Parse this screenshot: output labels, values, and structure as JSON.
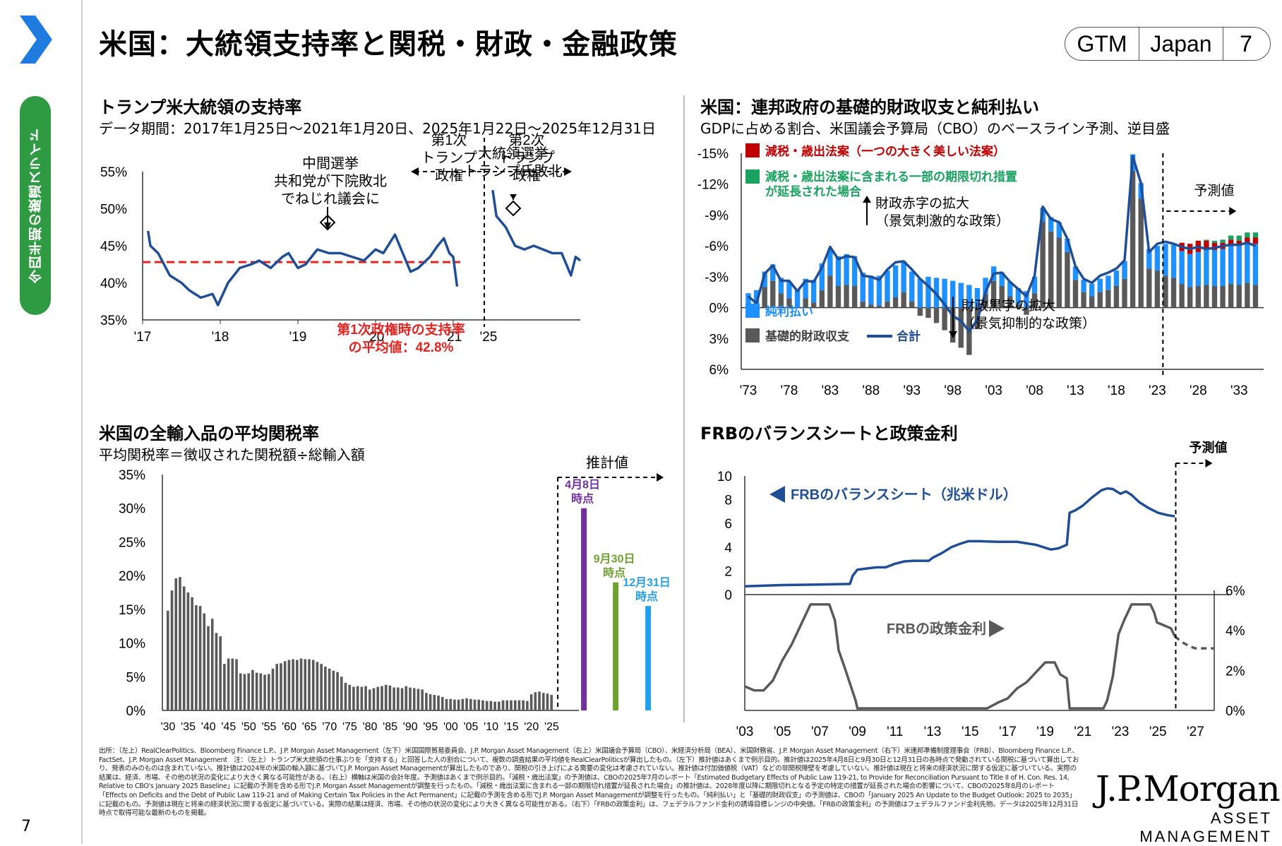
{
  "header": {
    "title": "米国：大統領支持率と関税・財政・金融政策",
    "badge": [
      "GTM",
      "Japan",
      "7"
    ]
  },
  "rail": {
    "label": "今四半期の厳選スライド",
    "page_number": "7"
  },
  "colors": {
    "navy": "#1f4e96",
    "red": "#e52420",
    "light_blue": "#1e90ff",
    "dark_red": "#c00000",
    "green": "#1aa260",
    "gray": "#595959",
    "purple": "#7030a0",
    "olive": "#70a030",
    "sky": "#23a0ea",
    "rail_green": "#2e9b42",
    "chevron_blue": "#1e7be0"
  },
  "chart_data": [
    {
      "id": "approval",
      "type": "line",
      "title": "トランプ米大統領の支持率",
      "subtitle": "データ期間：2017年1月25日～2021年1月20日、2025年1月22日～2025年12月31日",
      "ylim": [
        35,
        55
      ],
      "yticks": [
        "55%",
        "50%",
        "45%",
        "40%",
        "35%"
      ],
      "xticks": [
        "'17",
        "'18",
        "'19",
        "'20",
        "'21",
        "'25"
      ],
      "series": [
        {
          "period": "2017-2021",
          "x": [
            2017.07,
            2017.1,
            2017.2,
            2017.35,
            2017.5,
            2017.6,
            2017.75,
            2017.9,
            2017.97,
            2018.1,
            2018.25,
            2018.4,
            2018.5,
            2018.65,
            2018.8,
            2018.88,
            2019.0,
            2019.1,
            2019.25,
            2019.4,
            2019.55,
            2019.7,
            2019.85,
            2020.0,
            2020.1,
            2020.25,
            2020.35,
            2020.45,
            2020.55,
            2020.7,
            2020.8,
            2020.88,
            2020.95,
            2021.0,
            2021.05
          ],
          "y": [
            47.0,
            45.0,
            44.0,
            41.0,
            40.0,
            39.0,
            38.0,
            38.5,
            37.0,
            40.0,
            42.0,
            42.5,
            43.0,
            42.0,
            43.5,
            44.0,
            42.0,
            42.5,
            44.5,
            44.0,
            44.0,
            43.5,
            43.0,
            44.5,
            44.0,
            46.5,
            44.0,
            41.5,
            42.0,
            43.5,
            45.0,
            46.0,
            44.0,
            43.5,
            39.5
          ]
        },
        {
          "period": "2025",
          "x": [
            2025.06,
            2025.1,
            2025.2,
            2025.3,
            2025.4,
            2025.5,
            2025.6,
            2025.7,
            2025.8,
            2025.9,
            2025.95,
            2026.0
          ],
          "y": [
            52.5,
            49.0,
            47.5,
            45.0,
            44.5,
            45.0,
            44.5,
            44.0,
            44.0,
            41.0,
            43.5,
            43.0
          ]
        }
      ],
      "average_line": {
        "value": 42.8,
        "label": "第1次政権時の支持率の平均値：42.8%"
      },
      "annotations": [
        {
          "text": "中間選挙\n共和党が下院敗北\nでねじれ議会に",
          "x": 2018.85
        },
        {
          "text": "大統領選挙\nトランプ氏敗北",
          "x": 2020.85
        },
        {
          "text": "第1次\nトランプ\n政権"
        },
        {
          "text": "第2次\nトランプ\n政権"
        }
      ]
    },
    {
      "id": "fiscal",
      "type": "bar",
      "title": "米国：連邦政府の基礎的財政収支と純利払い",
      "subtitle": "GDPに占める割合、米国議会予算局（CBO）のベースライン予測、逆目盛",
      "ylim": [
        6,
        -15
      ],
      "yticks": [
        "-15%",
        "-12%",
        "-9%",
        "-6%",
        "-3%",
        "0%",
        "3%",
        "6%"
      ],
      "xticks": [
        "'73",
        "'78",
        "'83",
        "'88",
        "'93",
        "'98",
        "'03",
        "'08",
        "'13",
        "'18",
        "'23",
        "'28",
        "'33"
      ],
      "legend": [
        "減税・歳出法案（一つの大きく美しい法案）",
        "減税・歳出法案に含まれる一部の期限切れ措置が延長された場合",
        "純利払い",
        "基礎的財政収支",
        "合計"
      ],
      "annotations": [
        "財政赤字の拡大\n（景気刺激的な政策）",
        "財政黒字の拡大\n（景気抑制的な政策）",
        "予測値"
      ],
      "x": [
        1973,
        1974,
        1975,
        1976,
        1977,
        1978,
        1979,
        1980,
        1981,
        1982,
        1983,
        1984,
        1985,
        1986,
        1987,
        1988,
        1989,
        1990,
        1991,
        1992,
        1993,
        1994,
        1995,
        1996,
        1997,
        1998,
        1999,
        2000,
        2001,
        2002,
        2003,
        2004,
        2005,
        2006,
        2007,
        2008,
        2009,
        2010,
        2011,
        2012,
        2013,
        2014,
        2015,
        2016,
        2017,
        2018,
        2019,
        2020,
        2021,
        2022,
        2023,
        2024,
        2025,
        2026,
        2027,
        2028,
        2029,
        2030,
        2031,
        2032,
        2033,
        2034,
        2035
      ],
      "primary": [
        0.6,
        -0.2,
        -2.0,
        -2.6,
        -1.4,
        -0.9,
        0.0,
        -0.9,
        -0.5,
        -1.7,
        -3.1,
        -2.1,
        -2.2,
        -2.1,
        -0.6,
        -0.3,
        -0.2,
        -0.6,
        -1.0,
        -1.5,
        -0.6,
        0.8,
        1.0,
        1.5,
        2.2,
        3.4,
        3.9,
        4.6,
        2.1,
        -1.3,
        -2.6,
        -2.1,
        -1.1,
        -0.3,
        0.7,
        -1.4,
        -8.4,
        -7.4,
        -6.8,
        -5.4,
        -2.7,
        -1.5,
        -1.1,
        -1.5,
        -1.7,
        -2.1,
        -2.8,
        -13.3,
        -10.6,
        -3.8,
        -3.6,
        -3.1,
        -2.9,
        -2.3,
        -2.0,
        -2.1,
        -2.2,
        -2.1,
        -2.1,
        -2.3,
        -2.2,
        -2.4,
        -2.2
      ],
      "net_interest": [
        -1.4,
        -1.5,
        -1.5,
        -1.6,
        -1.5,
        -1.6,
        -1.7,
        -1.9,
        -2.2,
        -2.6,
        -2.6,
        -2.9,
        -3.0,
        -2.9,
        -2.8,
        -2.8,
        -2.9,
        -3.0,
        -3.1,
        -3.0,
        -2.9,
        -2.8,
        -3.0,
        -2.9,
        -2.8,
        -2.6,
        -2.4,
        -2.2,
        -1.9,
        -1.6,
        -1.4,
        -1.3,
        -1.4,
        -1.6,
        -1.6,
        -1.6,
        -1.3,
        -1.4,
        -1.5,
        -1.3,
        -1.3,
        -1.2,
        -1.2,
        -1.3,
        -1.4,
        -1.5,
        -1.7,
        -1.6,
        -1.5,
        -1.9,
        -2.4,
        -3.1,
        -3.2,
        -3.2,
        -3.2,
        -3.3,
        -3.4,
        -3.5,
        -3.6,
        -3.7,
        -3.8,
        -3.9,
        -4.0
      ],
      "obbba": [
        0,
        0,
        0,
        0,
        0,
        0,
        0,
        0,
        0,
        0,
        0,
        0,
        0,
        0,
        0,
        0,
        0,
        0,
        0,
        0,
        0,
        0,
        0,
        0,
        0,
        0,
        0,
        0,
        0,
        0,
        0,
        0,
        0,
        0,
        0,
        0,
        0,
        0,
        0,
        0,
        0,
        0,
        0,
        0,
        0,
        0,
        0,
        0,
        0,
        0,
        0,
        0,
        0,
        -0.8,
        -1.0,
        -1.1,
        -0.9,
        -0.7,
        -0.6,
        -0.6,
        -0.5,
        -0.5,
        -0.6
      ],
      "extension": [
        0,
        0,
        0,
        0,
        0,
        0,
        0,
        0,
        0,
        0,
        0,
        0,
        0,
        0,
        0,
        0,
        0,
        0,
        0,
        0,
        0,
        0,
        0,
        0,
        0,
        0,
        0,
        0,
        0,
        0,
        0,
        0,
        0,
        0,
        0,
        0,
        0,
        0,
        0,
        0,
        0,
        0,
        0,
        0,
        0,
        0,
        0,
        0,
        0,
        0,
        0,
        0,
        0,
        0,
        0,
        0,
        -0.1,
        -0.2,
        -0.3,
        -0.4,
        -0.5,
        -0.5,
        -0.5
      ],
      "total": [
        -1.1,
        -0.4,
        -3.3,
        -4.1,
        -2.6,
        -2.6,
        -1.6,
        -2.6,
        -2.5,
        -3.9,
        -5.9,
        -4.7,
        -5.0,
        -4.9,
        -3.1,
        -3.0,
        -2.7,
        -3.7,
        -4.4,
        -4.5,
        -3.7,
        -2.8,
        -2.1,
        -1.3,
        -0.3,
        0.8,
        1.3,
        2.3,
        1.2,
        -1.5,
        -3.3,
        -3.4,
        -2.5,
        -1.8,
        -1.1,
        -3.1,
        -9.8,
        -8.6,
        -8.3,
        -6.7,
        -4.0,
        -2.8,
        -2.4,
        -3.1,
        -3.4,
        -3.8,
        -4.6,
        -14.7,
        -12.1,
        -5.4,
        -6.2,
        -6.4,
        -6.2,
        -5.9,
        -5.7,
        -5.9,
        -5.7,
        -5.8,
        -6.0,
        -6.1,
        -6.1,
        -6.3,
        -6.0
      ]
    },
    {
      "id": "tariff",
      "type": "bar",
      "title": "米国の全輸入品の平均関税率",
      "subtitle": "平均関税率＝徴収された関税額÷総輸入額",
      "ylim": [
        0,
        35
      ],
      "yticks": [
        "35%",
        "30%",
        "25%",
        "20%",
        "15%",
        "10%",
        "5%",
        "0%"
      ],
      "xticks": [
        "'30",
        "'35",
        "'40",
        "'45",
        "'50",
        "'55",
        "'60",
        "'65",
        "'70",
        "'75",
        "'80",
        "'85",
        "'90",
        "'95",
        "'00",
        "'05",
        "'10",
        "'15",
        "'20",
        "'25"
      ],
      "years_start": 1930,
      "values": [
        14.8,
        17.8,
        19.6,
        19.8,
        18.4,
        17.5,
        16.8,
        15.6,
        15.5,
        14.4,
        12.5,
        13.6,
        11.5,
        11.0,
        6.9,
        7.7,
        7.7,
        7.6,
        5.5,
        5.4,
        5.5,
        6.0,
        5.6,
        5.5,
        5.3,
        5.4,
        6.2,
        6.9,
        7.0,
        7.3,
        7.5,
        7.6,
        7.5,
        7.7,
        7.6,
        7.6,
        7.5,
        7.2,
        6.9,
        6.5,
        6.2,
        5.9,
        5.7,
        5.0,
        4.1,
        3.8,
        3.5,
        3.6,
        3.5,
        3.6,
        3.1,
        3.3,
        3.5,
        3.6,
        3.8,
        3.7,
        3.4,
        3.4,
        3.3,
        3.6,
        3.4,
        3.3,
        3.2,
        3.1,
        2.6,
        2.4,
        2.3,
        2.2,
        2.0,
        1.7,
        1.7,
        1.6,
        1.6,
        1.7,
        1.8,
        1.7,
        1.6,
        1.6,
        1.5,
        1.4,
        1.4,
        1.3,
        1.3,
        1.5,
        1.5,
        1.5,
        1.5,
        1.5,
        1.5,
        1.4,
        2.4,
        2.7,
        2.8,
        2.6,
        2.5,
        2.3
      ],
      "projection_label": "推計値",
      "estimates": [
        {
          "label": "4月8日\n時点",
          "value": 30.0,
          "color": "#7030a0"
        },
        {
          "label": "9月30日\n時点",
          "value": 19.0,
          "color": "#70a030"
        },
        {
          "label": "12月31日\n時点",
          "value": 15.5,
          "color": "#23a0ea"
        }
      ]
    },
    {
      "id": "fed",
      "type": "line",
      "title": "FRBのバランスシートと政策金利",
      "projection_label": "予測値",
      "xticks": [
        "'03",
        "'05",
        "'07",
        "'09",
        "'11",
        "'13",
        "'15",
        "'17",
        "'19",
        "'21",
        "'23",
        "'25",
        "'27"
      ],
      "balance_sheet": {
        "label": "FRBのバランスシート（兆米ドル）",
        "ylim": [
          0,
          10
        ],
        "yticks": [
          "10",
          "8",
          "6",
          "4",
          "2",
          "0"
        ],
        "x": [
          2003.0,
          2005.0,
          2007.0,
          2008.6,
          2008.75,
          2009.0,
          2009.5,
          2010.0,
          2010.5,
          2011.0,
          2011.5,
          2012.0,
          2012.8,
          2013.0,
          2013.5,
          2014.0,
          2014.5,
          2014.9,
          2015.5,
          2016.5,
          2017.5,
          2018.5,
          2019.3,
          2019.7,
          2020.15,
          2020.3,
          2020.6,
          2021.0,
          2021.5,
          2022.0,
          2022.3,
          2022.6,
          2023.0,
          2023.3,
          2023.6,
          2024.0,
          2024.5,
          2025.0,
          2025.5,
          2025.9
        ],
        "y": [
          0.7,
          0.8,
          0.85,
          0.9,
          1.6,
          2.1,
          2.2,
          2.3,
          2.3,
          2.6,
          2.8,
          2.85,
          2.85,
          3.1,
          3.5,
          4.0,
          4.3,
          4.5,
          4.5,
          4.45,
          4.45,
          4.2,
          3.8,
          3.9,
          4.2,
          6.9,
          7.1,
          7.5,
          8.2,
          8.8,
          8.95,
          8.9,
          8.5,
          8.7,
          8.4,
          7.8,
          7.3,
          6.9,
          6.7,
          6.6
        ]
      },
      "policy_rate": {
        "label": "FRBの政策金利",
        "ylim": [
          0,
          6
        ],
        "yticks": [
          "6%",
          "4%",
          "2%",
          "0%"
        ],
        "x": [
          2003.0,
          2003.5,
          2004.0,
          2004.5,
          2005.0,
          2005.5,
          2006.0,
          2006.5,
          2007.5,
          2007.8,
          2008.0,
          2008.3,
          2008.9,
          2009.0,
          2015.9,
          2016.5,
          2017.0,
          2017.5,
          2018.0,
          2018.5,
          2019.0,
          2019.5,
          2019.8,
          2020.15,
          2020.3,
          2022.1,
          2022.3,
          2022.6,
          2022.9,
          2023.2,
          2023.6,
          2024.6,
          2024.8,
          2024.95,
          2025.7,
          2025.9
        ],
        "y": [
          1.2,
          1.0,
          1.0,
          1.5,
          2.5,
          3.3,
          4.3,
          5.3,
          5.3,
          4.5,
          3.0,
          2.2,
          0.5,
          0.1,
          0.1,
          0.4,
          0.6,
          1.1,
          1.4,
          1.9,
          2.4,
          2.4,
          1.8,
          1.6,
          0.1,
          0.1,
          0.5,
          1.7,
          3.8,
          4.5,
          5.3,
          5.3,
          4.9,
          4.4,
          4.1,
          3.7
        ],
        "projection_x": [
          2025.9,
          2026.3,
          2026.7,
          2027.0,
          2027.5,
          2028.0
        ],
        "projection_y": [
          3.7,
          3.4,
          3.2,
          3.1,
          3.1,
          3.1
        ]
      }
    }
  ],
  "footnote": "出所：（左上）RealClearPolitics、Bloomberg Finance L.P.、J.P. Morgan Asset Management（左下）米国国際貿易委員会、J.P. Morgan Asset Management（右上）米国議会予算局（CBO）、米経済分析局（BEA）、米国財務省、J.P. Morgan Asset Management（右下）米連邦準備制度理事会（FRB）、Bloomberg Finance L.P.、FactSet、J.P. Morgan Asset Management　注：（左上）トランプ米大統領の仕事ぶりを「支持する」と回答した人の割合について、複数の調査結果の平均値をRealClearPoliticsが算出したもの。（左下）推計値はあくまで例示目的。推計値は2025年4月8日と9月30日と12月31日の各時点で発動されている関税に基づいて算出しており、発表のみのものは含まれていない。推計値は2024年の米国の輸入額に基づいてJ.P. Morgan Asset Managementが算出したものであり、関税の引き上げによる需要の変化は考慮されていない。推計値は付加価値税（VAT）などの非関税障壁を考慮していない。推計値は現在と将来の経済状況に関する仮定に基づいている。実際の結果は、経済、市場、その他の状況の変化により大きく異なる可能性がある。（右上）横軸は米国の会計年度。予測値はあくまで例示目的。「減税・歳出法案」の予測値は、CBOの2025年7月のレポート「Estimated Budgetary Effects of Public Law 119-21, to Provide for Reconciliation Pursuant to Title II of H. Con. Res. 14, Relative to CBO's January 2025 Baseline」に記載の予測を含める形でJ.P. Morgan Asset Managementが調整を行ったもの。「減税・歳出法案に含まれる一部の期限切れ措置が延長された場合」の推計値は、2028年度以降に期限切れとなる予定の特定の措置が延長された場合の影響について、CBOの2025年8月のレポート「Effects on Deficits and the Debt of Public Law 119-21 and of Making Certain Tax Policies in the Act Permanent」に記載の予測を含める形でJ.P. Morgan Asset Managementが調整を行ったもの。「純利払い」と「基礎的財政収支」の予測値は、CBOの「January 2025 An Update to the Budget Outlook: 2025 to 2035」に記載のもの。予測値は現在と将来の経済状況に関する仮定に基づいている。実際の結果は経済、市場、その他の状況の変化により大きく異なる可能性がある。（右下）「FRBの政策金利」は、フェデラルファンド金利の誘導目標レンジの中央値。「FRBの政策金利」の予測値はフェデラルファンド金利先物。データは2025年12月31日時点で取得可能な最新のものを掲載。",
  "brand": {
    "name": "J.P.Morgan",
    "sub": "ASSET MANAGEMENT"
  }
}
